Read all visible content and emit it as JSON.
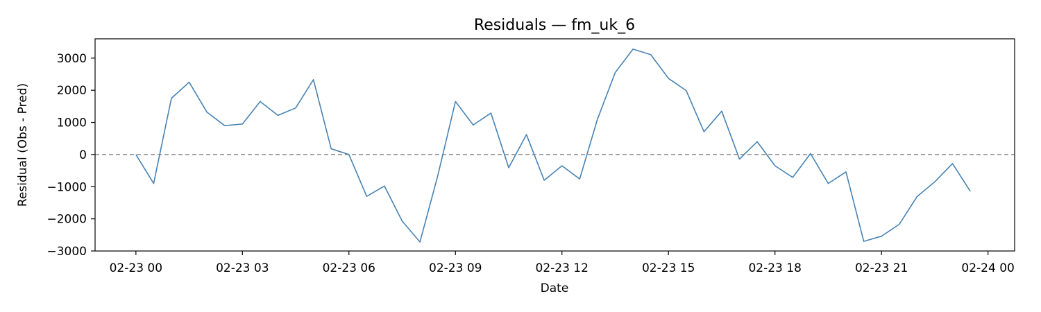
{
  "chart_data": {
    "type": "line",
    "title": "Residuals — fm_uk_6",
    "xlabel": "Date",
    "ylabel": "Residual (Obs - Pred)",
    "x_unit": "hour of 2023-02-23 (date axis)",
    "xlim": [
      -1.15,
      24.75
    ],
    "ylim": [
      -3000,
      3600
    ],
    "grid": false,
    "legend": "none",
    "x_ticks": [
      {
        "value": 0,
        "label": "02-23 00"
      },
      {
        "value": 3,
        "label": "02-23 03"
      },
      {
        "value": 6,
        "label": "02-23 06"
      },
      {
        "value": 9,
        "label": "02-23 09"
      },
      {
        "value": 12,
        "label": "02-23 12"
      },
      {
        "value": 15,
        "label": "02-23 15"
      },
      {
        "value": 18,
        "label": "02-23 18"
      },
      {
        "value": 21,
        "label": "02-23 21"
      },
      {
        "value": 24,
        "label": "02-24 00"
      }
    ],
    "y_ticks": [
      {
        "value": 3000,
        "label": "3000"
      },
      {
        "value": 2000,
        "label": "2000"
      },
      {
        "value": 1000,
        "label": "1000"
      },
      {
        "value": 0,
        "label": "0"
      },
      {
        "value": -1000,
        "label": "−1000"
      },
      {
        "value": -2000,
        "label": "−2000"
      },
      {
        "value": -3000,
        "label": "−3000"
      }
    ],
    "reference_line": {
      "y": 0,
      "style": "dashed",
      "color": "#808080"
    },
    "series": [
      {
        "color": "#4682b4",
        "x": [
          0,
          0.5,
          1,
          1.5,
          2,
          2.5,
          3,
          3.5,
          4,
          4.5,
          5,
          5.5,
          6,
          6.5,
          7,
          7.5,
          8,
          8.5,
          9,
          9.5,
          10,
          10.5,
          11,
          11.5,
          12,
          12.5,
          13,
          13.5,
          14,
          14.5,
          15,
          15.5,
          16,
          16.5,
          17,
          17.5,
          18,
          18.5,
          19,
          19.5,
          20,
          20.5,
          21,
          21.5,
          22,
          22.5,
          23,
          23.5
        ],
        "y": [
          0,
          -900,
          1750,
          2250,
          1320,
          900,
          950,
          1650,
          1220,
          1450,
          2330,
          180,
          0,
          -1300,
          -980,
          -2070,
          -2720,
          -670,
          1650,
          920,
          1290,
          -410,
          620,
          -800,
          -350,
          -760,
          1100,
          2550,
          3280,
          3110,
          2370,
          1990,
          710,
          1350,
          -140,
          400,
          -350,
          -710,
          30,
          -900,
          -540,
          -2700,
          -2540,
          -2170,
          -1310,
          -850,
          -280,
          -1140
        ]
      }
    ]
  }
}
